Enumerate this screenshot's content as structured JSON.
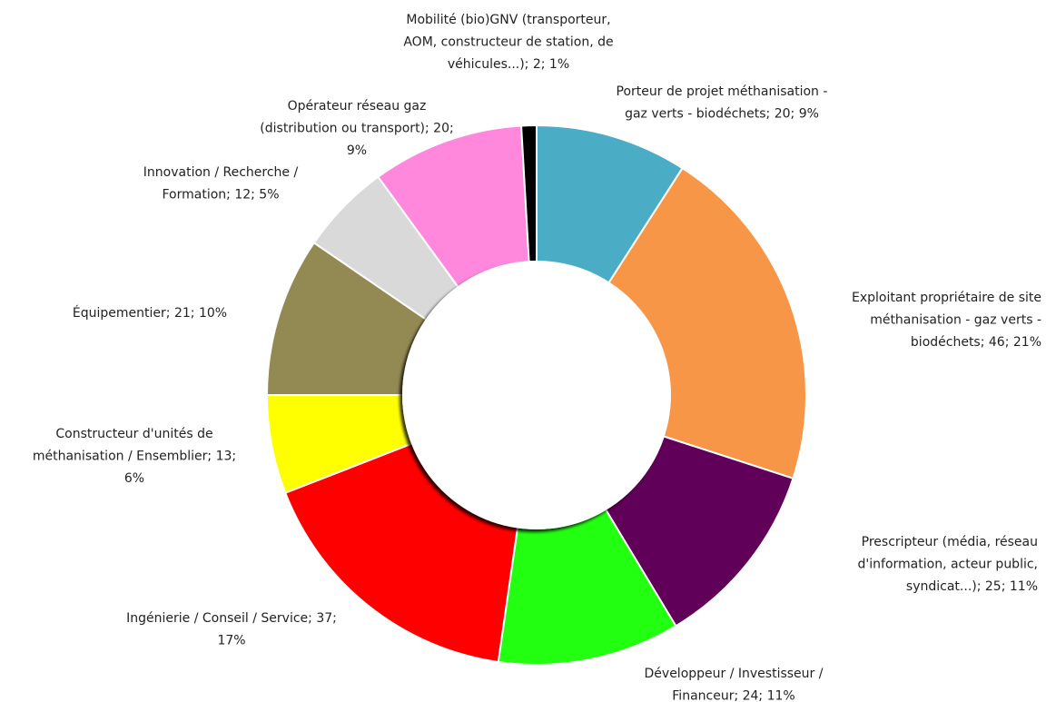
{
  "chart_data": {
    "type": "donut",
    "labels": [
      [
        "Porteur de projet méthanisation -",
        "gaz verts - biodéchets; 20; 9%"
      ],
      [
        "Exploitant propriétaire de site",
        "méthanisation - gaz verts -",
        "biodéchets; 46; 21%"
      ],
      [
        "Prescripteur (média, réseau",
        "d'information, acteur public,",
        "syndicat...); 25; 11%"
      ],
      [
        "Développeur / Investisseur /",
        "Financeur; 24; 11%"
      ],
      [
        "Ingénierie / Conseil / Service; 37;",
        "17%"
      ],
      [
        "Constructeur d'unités de",
        "méthanisation / Ensemblier; 13;",
        "6%"
      ],
      [
        "Équipementier; 21; 10%"
      ],
      [
        "Innovation / Recherche /",
        "Formation; 12; 5%"
      ],
      [
        "Opérateur réseau gaz",
        "(distribution ou transport); 20;",
        "9%"
      ],
      [
        "Mobilité (bio)GNV (transporteur,",
        "AOM, constructeur de station, de",
        "véhicules...); 2; 1%"
      ]
    ],
    "values": [
      20,
      46,
      25,
      24,
      37,
      13,
      21,
      12,
      20,
      2
    ],
    "colors": [
      "#4bacc6",
      "#f79646",
      "#600058",
      "#22ff11",
      "#ff0000",
      "#ffff00",
      "#938953",
      "#d9d9d9",
      "#ff88dd",
      "#000000"
    ]
  }
}
